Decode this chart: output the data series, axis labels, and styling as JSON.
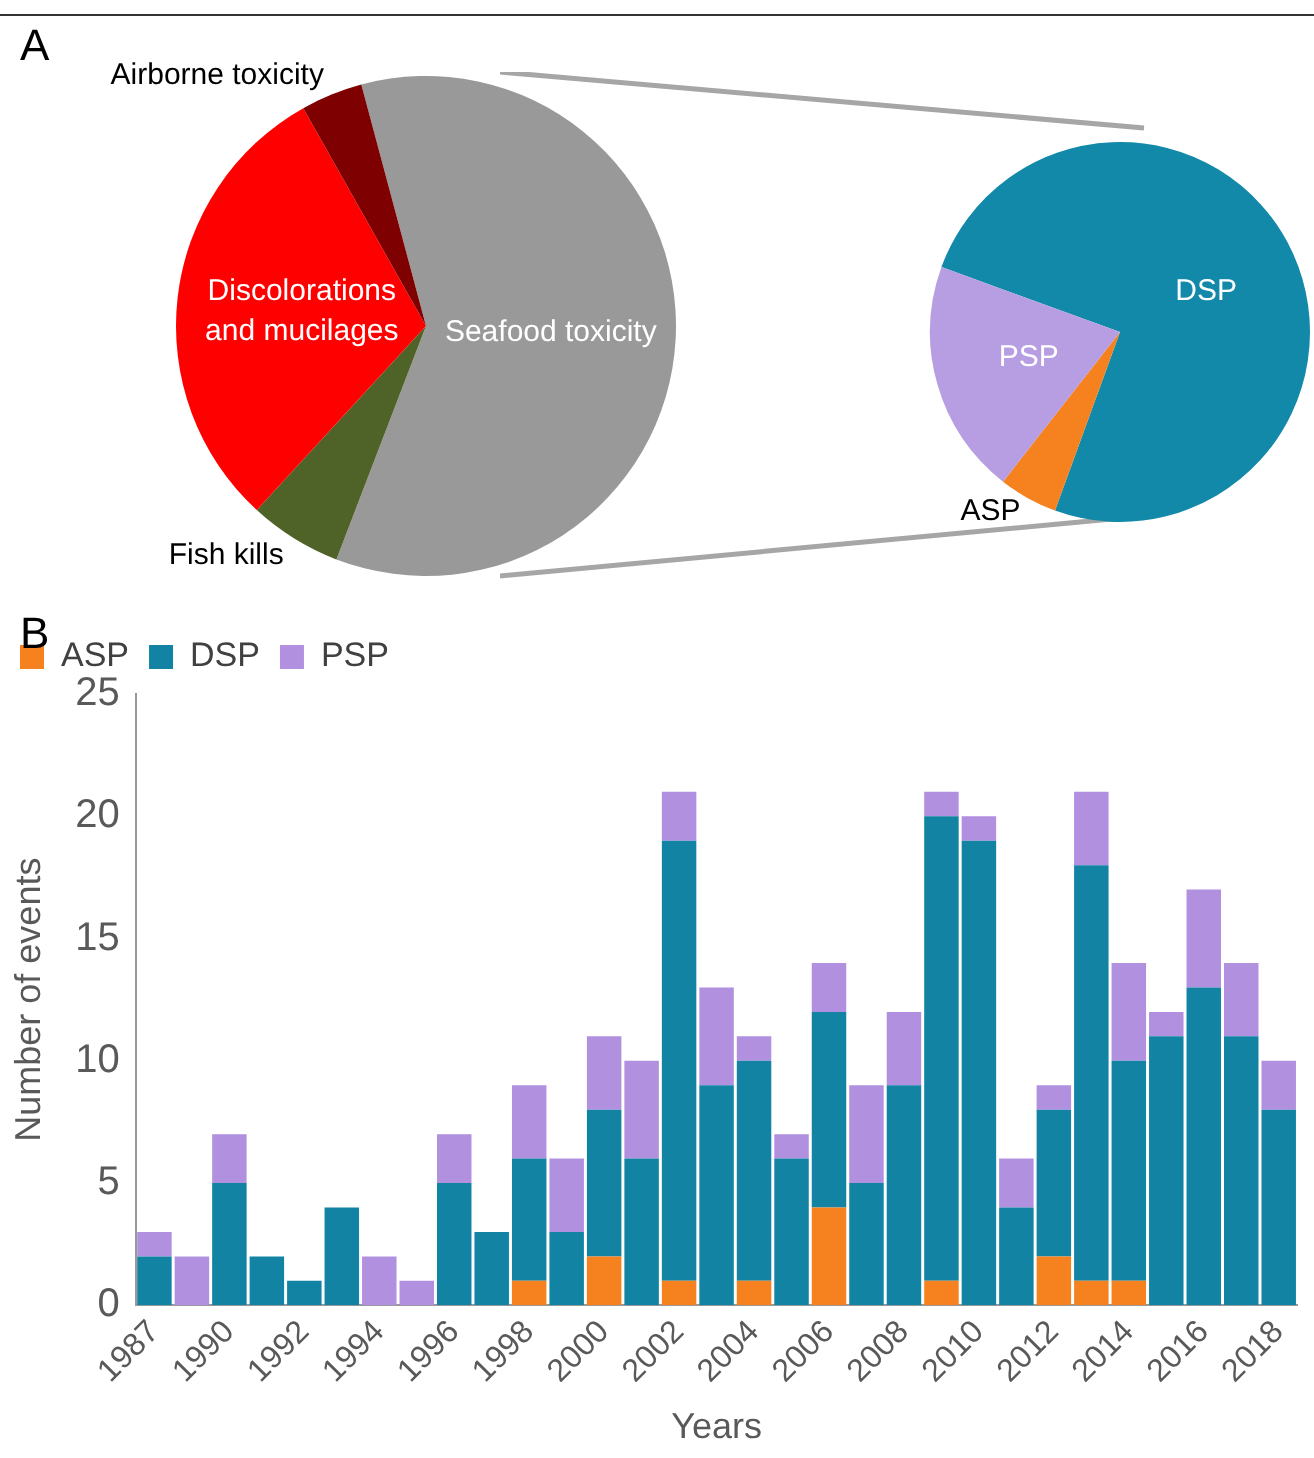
{
  "chart_data": [
    {
      "type": "pie",
      "annotations": [
        "A"
      ],
      "categories": [
        "Seafood toxicity",
        "Fish kills",
        "Discolorations and mucilages",
        "Airborne toxicity"
      ],
      "values": [
        60,
        6,
        30,
        4
      ],
      "colors": [
        "#999999",
        "#4f6228",
        "#ff0000",
        "#7f0000"
      ]
    },
    {
      "type": "pie",
      "categories": [
        "DSP",
        "ASP",
        "PSP"
      ],
      "values": [
        75,
        5,
        20
      ],
      "colors": [
        "#1289a9",
        "#f5821f",
        "#b79ee3"
      ]
    },
    {
      "type": "bar",
      "annotations": [
        "B"
      ],
      "stacked": true,
      "legend": "top left",
      "xlabel": "Years",
      "ylabel": "Number of events",
      "ylim": [
        0,
        25
      ],
      "yticks": [
        0,
        5,
        10,
        15,
        20,
        25
      ],
      "categories": [
        "1987",
        null,
        "1990",
        null,
        "1992",
        null,
        "1994",
        null,
        "1996",
        null,
        "1998",
        null,
        "2000",
        null,
        "2002",
        null,
        "2004",
        null,
        "2006",
        null,
        "2008",
        null,
        "2010",
        null,
        "2012",
        null,
        "2014",
        null,
        "2016",
        null,
        "2018"
      ],
      "series": [
        {
          "name": "ASP",
          "color": "#f5821f",
          "values": [
            0,
            0,
            0,
            0,
            0,
            0,
            0,
            0,
            0,
            0,
            1,
            0,
            2,
            0,
            1,
            0,
            1,
            0,
            4,
            0,
            0,
            1,
            0,
            0,
            2,
            1,
            1,
            0,
            0,
            0,
            0
          ]
        },
        {
          "name": "DSP",
          "color": "#1283a3",
          "values": [
            2,
            0,
            5,
            2,
            1,
            4,
            0,
            0,
            5,
            3,
            5,
            3,
            6,
            6,
            18,
            9,
            9,
            6,
            8,
            5,
            9,
            19,
            19,
            4,
            6,
            17,
            9,
            11,
            13,
            11,
            8
          ]
        },
        {
          "name": "PSP",
          "color": "#b190e0",
          "values": [
            1,
            2,
            2,
            0,
            0,
            0,
            2,
            1,
            2,
            0,
            3,
            3,
            3,
            4,
            2,
            4,
            1,
            1,
            2,
            4,
            3,
            1,
            1,
            2,
            1,
            3,
            4,
            1,
            4,
            3,
            2
          ]
        }
      ]
    }
  ]
}
